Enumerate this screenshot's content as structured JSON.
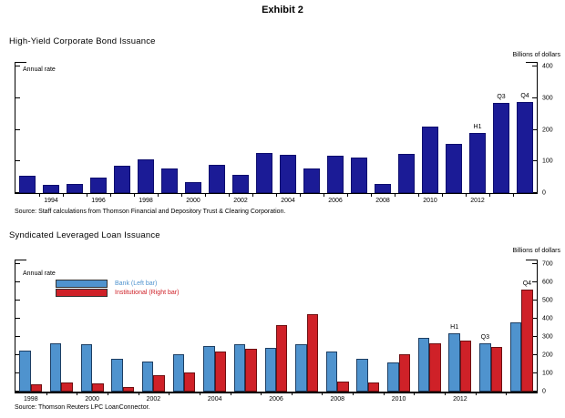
{
  "title": "Exhibit 2",
  "charts": [
    {
      "title": "High-Yield Corporate Bond Issuance",
      "unit_label": "Billions of dollars",
      "inner_label": "Annual rate",
      "source": "Source: Staff calculations from Thomson Financial and Depository Trust & Clearing Corporation."
    },
    {
      "title": "Syndicated Leveraged Loan Issuance",
      "unit_label": "Billions of dollars",
      "inner_label": "Annual rate",
      "source": "Source: Thomson Reuters LPC LoanConnector.",
      "legend": [
        {
          "label": "Bank (Left bar)",
          "color": "#4f93ce"
        },
        {
          "label": "Institutional (Right bar)",
          "color": "#cf2128"
        }
      ]
    }
  ],
  "chart_data": [
    {
      "type": "bar",
      "title": "High-Yield Corporate Bond Issuance",
      "ylabel": "Billions of dollars",
      "ylim": [
        0,
        400
      ],
      "yticks": [
        0,
        100,
        200,
        300,
        400
      ],
      "categories": [
        "1993",
        "1994",
        "1995",
        "1996",
        "1997",
        "1998",
        "1999",
        "2000",
        "2001",
        "2002",
        "2003",
        "2004",
        "2005",
        "2006",
        "2007",
        "2008",
        "2009",
        "2010",
        "2011",
        "H1",
        "Q3",
        "Q4"
      ],
      "values": [
        55,
        25,
        28,
        50,
        85,
        106,
        77,
        34,
        90,
        58,
        127,
        122,
        79,
        117,
        112,
        30,
        123,
        209,
        155,
        190,
        286,
        287
      ],
      "bar_color": "#1b1b96",
      "bar_border": "#0e0e6e",
      "x_tick_labels": [
        {
          "slot": 1,
          "label": "1994"
        },
        {
          "slot": 3,
          "label": "1996"
        },
        {
          "slot": 5,
          "label": "1998"
        },
        {
          "slot": 7,
          "label": "2000"
        },
        {
          "slot": 9,
          "label": "2002"
        },
        {
          "slot": 11,
          "label": "2004"
        },
        {
          "slot": 13,
          "label": "2006"
        },
        {
          "slot": 15,
          "label": "2008"
        },
        {
          "slot": 17,
          "label": "2010"
        },
        {
          "slot": 19,
          "label": "2012"
        }
      ],
      "annotations": [
        {
          "slot": 19,
          "label": "H1"
        },
        {
          "slot": 20,
          "label": "Q3"
        },
        {
          "slot": 21,
          "label": "Q4"
        }
      ]
    },
    {
      "type": "bar",
      "grouped": true,
      "title": "Syndicated Leveraged Loan Issuance",
      "ylabel": "Billions of dollars",
      "ylim": [
        0,
        700
      ],
      "yticks": [
        0,
        100,
        200,
        300,
        400,
        500,
        600,
        700
      ],
      "categories": [
        "1998",
        "1999",
        "2000",
        "2001",
        "2002",
        "2003",
        "2004",
        "2005",
        "2006",
        "2007",
        "2008",
        "2009",
        "2010",
        "2011",
        "H1",
        "Q3",
        "Q4"
      ],
      "series": [
        {
          "name": "Bank (Left bar)",
          "color": "#4f93ce",
          "border": "#1d3e63",
          "values": [
            225,
            265,
            260,
            182,
            163,
            205,
            252,
            258,
            242,
            258,
            220,
            179,
            160,
            297,
            322,
            265,
            379
          ]
        },
        {
          "name": "Institutional (Right bar)",
          "color": "#cf2128",
          "border": "#6e1012",
          "values": [
            38,
            48,
            43,
            25,
            92,
            107,
            219,
            236,
            366,
            427,
            57,
            50,
            203,
            264,
            282,
            245,
            558
          ]
        }
      ],
      "x_tick_labels": [
        {
          "slot": 0,
          "label": "1998"
        },
        {
          "slot": 2,
          "label": "2000"
        },
        {
          "slot": 4,
          "label": "2002"
        },
        {
          "slot": 6,
          "label": "2004"
        },
        {
          "slot": 8,
          "label": "2006"
        },
        {
          "slot": 10,
          "label": "2008"
        },
        {
          "slot": 12,
          "label": "2010"
        },
        {
          "slot": 14,
          "label": "2012"
        }
      ],
      "annotations": [
        {
          "slot": 14,
          "series": 0,
          "label": "H1"
        },
        {
          "slot": 15,
          "series": 0,
          "label": "Q3"
        },
        {
          "slot": 16,
          "series": 1,
          "label": "Q4"
        }
      ]
    }
  ]
}
